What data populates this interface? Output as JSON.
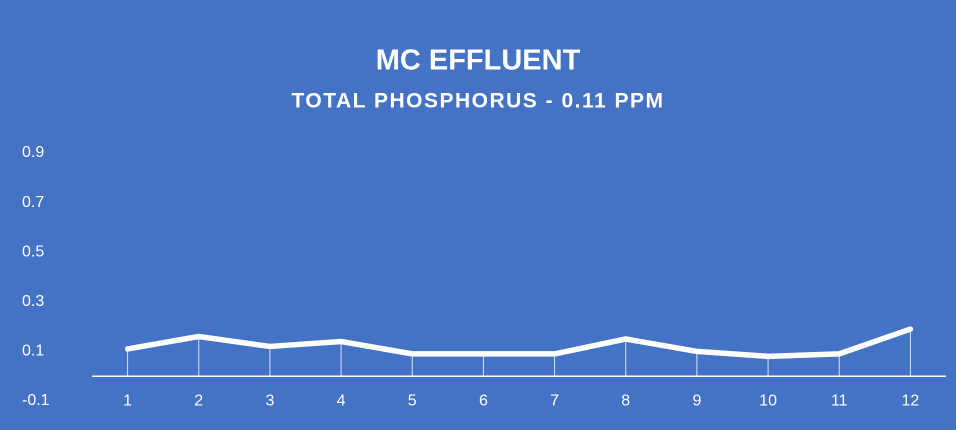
{
  "chart_data": {
    "type": "line",
    "title": "MC EFFLUENT",
    "subtitle": "TOTAL PHOSPHORUS - 0.11 PPM",
    "categories": [
      "1",
      "2",
      "3",
      "4",
      "5",
      "6",
      "7",
      "8",
      "9",
      "10",
      "11",
      "12"
    ],
    "values": [
      0.11,
      0.16,
      0.12,
      0.14,
      0.09,
      0.09,
      0.09,
      0.15,
      0.1,
      0.08,
      0.09,
      0.19
    ],
    "color": "#ffffff",
    "background": "#4472c4",
    "ylim": [
      -0.1,
      0.9
    ],
    "yticks": [
      -0.1,
      0.1,
      0.3,
      0.5,
      0.7,
      0.9
    ],
    "grid": false,
    "drop_lines": true
  }
}
